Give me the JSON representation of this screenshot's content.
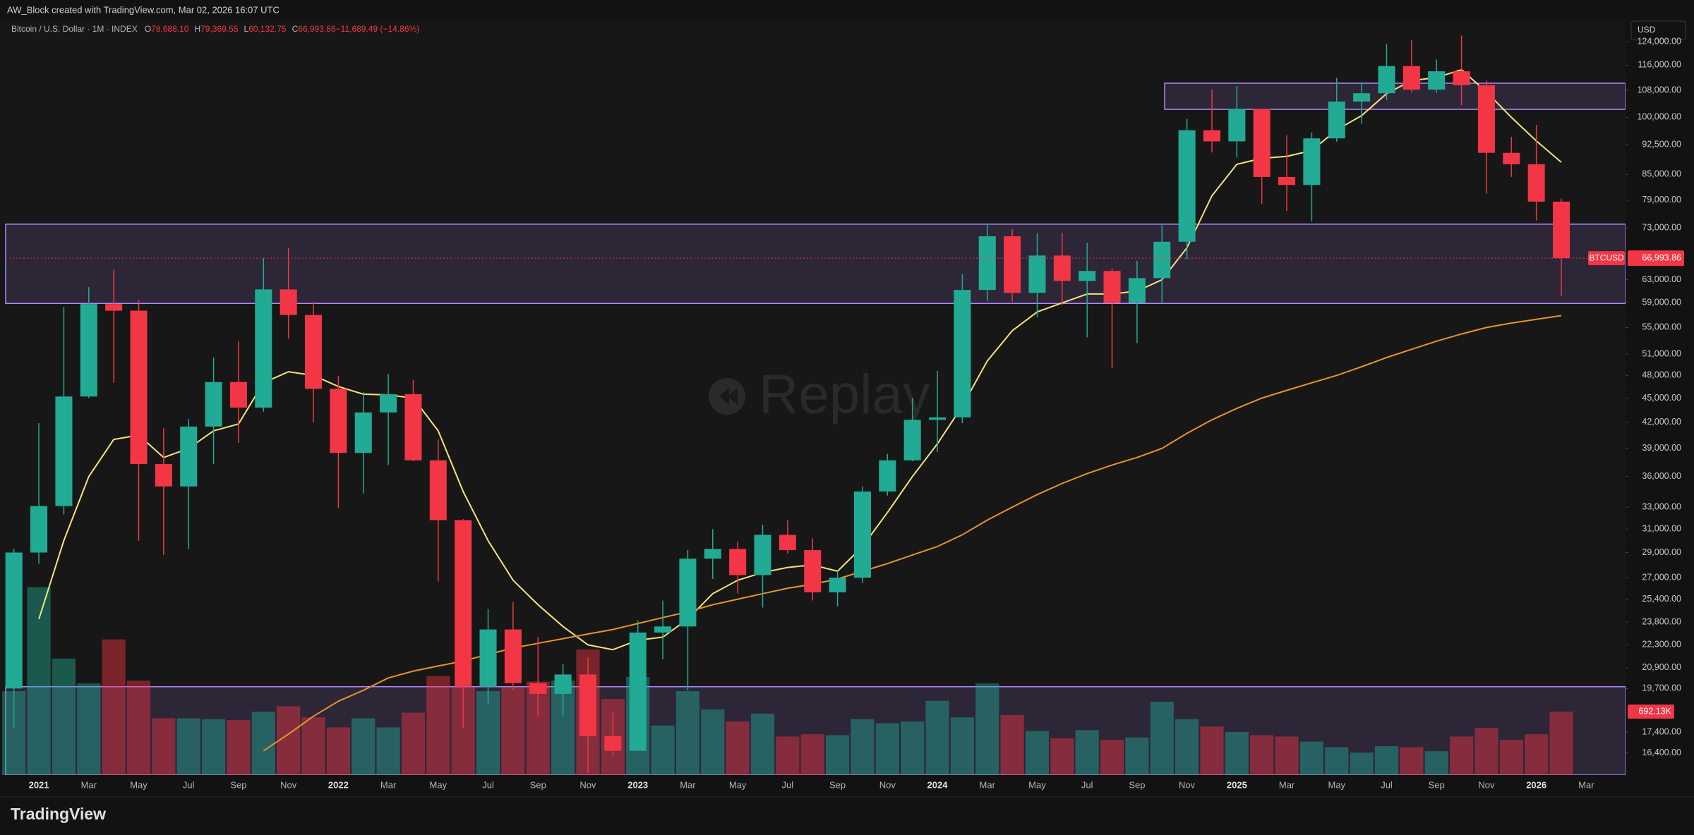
{
  "header": {
    "credit": "AW_Block created with TradingView.com, Mar 02, 2026 16:07 UTC",
    "symbol": "Bitcoin / U.S. Dollar · 1M · INDEX",
    "ohlc": [
      {
        "k": "O",
        "v": "78,688.10"
      },
      {
        "k": "H",
        "v": "79,369.55"
      },
      {
        "k": "L",
        "v": "60,132.75"
      },
      {
        "k": "C",
        "v": "66,993.86"
      },
      {
        "k": "",
        "v": "−11,689.49 (−14.86%)"
      }
    ],
    "currency": "USD",
    "watermark": "Replay",
    "logo": "TradingView"
  },
  "chart_data": {
    "type": "candlestick",
    "log_scale": true,
    "up_color": "#22ab94",
    "down_color": "#f23645",
    "categories": [
      null,
      "2021",
      null,
      "Mar",
      null,
      "May",
      null,
      "Jul",
      null,
      "Sep",
      null,
      "Nov",
      null,
      "2022",
      null,
      "Mar",
      null,
      "May",
      null,
      "Jul",
      null,
      "Sep",
      null,
      "Nov",
      null,
      "2023",
      null,
      "Mar",
      null,
      "May",
      null,
      "Jul",
      null,
      "Sep",
      null,
      "Nov",
      null,
      "2024",
      null,
      "Mar",
      null,
      "May",
      null,
      "Jul",
      null,
      "Sep",
      null,
      "Nov",
      null,
      "2025",
      null,
      "Mar",
      null,
      "May",
      null,
      "Jul",
      null,
      "Sep",
      null,
      "Nov",
      null,
      "2026",
      null,
      "Mar"
    ],
    "open": [
      19700,
      29000,
      33100,
      45200,
      58800,
      57700,
      37300,
      35000,
      41500,
      47100,
      43800,
      61300,
      57000,
      46200,
      38500,
      43200,
      45500,
      37700,
      31800,
      19800,
      23300,
      20000,
      19400,
      20500,
      17200,
      16500,
      23100,
      23500,
      28500,
      29300,
      27200,
      30500,
      29200,
      25900,
      27000,
      34500,
      37700,
      42300,
      42600,
      61200,
      71300,
      60700,
      67500,
      62800,
      64600,
      59000,
      63300,
      70200,
      96400,
      93400,
      102400,
      84400,
      82500,
      94200,
      104600,
      107100,
      115700,
      108200,
      114000,
      109600,
      90400,
      87500,
      78688.1,
      null
    ],
    "high": [
      29300,
      41900,
      58300,
      61700,
      64800,
      59500,
      41300,
      42400,
      50500,
      52900,
      67000,
      69000,
      59100,
      47900,
      45800,
      48200,
      47400,
      40000,
      31900,
      24700,
      25200,
      22800,
      21100,
      21500,
      18400,
      23900,
      25300,
      29200,
      31000,
      29900,
      31400,
      31800,
      30200,
      27500,
      35000,
      38400,
      45000,
      48600,
      64000,
      73800,
      72800,
      71900,
      72000,
      70000,
      65100,
      66500,
      73600,
      99600,
      108300,
      109300,
      102500,
      95000,
      95800,
      111900,
      110500,
      123200,
      124500,
      117900,
      126200,
      111000,
      94600,
      97900,
      79369.55,
      null
    ],
    "low": [
      17600,
      28100,
      32300,
      45000,
      47000,
      30000,
      28800,
      29300,
      37300,
      39600,
      43300,
      53300,
      42000,
      32900,
      34300,
      37200,
      37600,
      26700,
      17600,
      18800,
      19600,
      18200,
      18200,
      15500,
      16300,
      16500,
      21400,
      19600,
      26900,
      25800,
      24800,
      28900,
      25300,
      24900,
      26600,
      34100,
      37600,
      38600,
      41900,
      59300,
      59200,
      56600,
      58600,
      53500,
      49000,
      52600,
      58900,
      66800,
      90500,
      89200,
      78200,
      76600,
      74400,
      93300,
      98200,
      105100,
      107300,
      107300,
      103500,
      80500,
      84400,
      74600,
      60132.75,
      null
    ],
    "close": [
      29000,
      33100,
      45200,
      58800,
      57700,
      37300,
      35000,
      41500,
      47100,
      43800,
      61300,
      57000,
      46200,
      38500,
      43200,
      45500,
      37700,
      31800,
      19800,
      23300,
      20000,
      19400,
      20500,
      17200,
      16500,
      23100,
      23500,
      28500,
      29300,
      27200,
      30500,
      29200,
      25900,
      27000,
      34500,
      37700,
      42300,
      42600,
      61200,
      71300,
      60700,
      67500,
      62800,
      64600,
      59000,
      63300,
      70200,
      96400,
      93400,
      102400,
      84400,
      82500,
      94200,
      104600,
      107100,
      115700,
      108200,
      114000,
      109600,
      90400,
      87500,
      78688.1,
      66993.86,
      null
    ],
    "last_price": {
      "symbol": "BTCUSD",
      "label": "66,993.86"
    },
    "volume": {
      "up_color": "rgba(34,171,148,0.45)",
      "down_color": "rgba(242,54,69,0.45)",
      "last_label": "692.13K",
      "values": [
        915000,
        2050000,
        1270000,
        1000000,
        1480000,
        1030000,
        620000,
        620000,
        610000,
        600000,
        690000,
        750000,
        630000,
        520000,
        620000,
        520000,
        680000,
        1080000,
        960000,
        915000,
        960000,
        1020000,
        1030000,
        1370000,
        830000,
        1070000,
        540000,
        915000,
        715000,
        585000,
        670000,
        420000,
        445000,
        435000,
        610000,
        565000,
        585000,
        810000,
        630000,
        1000000,
        655000,
        480000,
        400000,
        490000,
        385000,
        410000,
        800000,
        610000,
        530000,
        470000,
        435000,
        420000,
        365000,
        305000,
        245000,
        315000,
        305000,
        260000,
        420000,
        515000,
        385000,
        445000,
        692130,
        null
      ]
    },
    "lines": [
      {
        "color": "#f5e37a",
        "values": [
          null,
          24000,
          30000,
          36000,
          40000,
          40500,
          38000,
          39000,
          41000,
          41800,
          47000,
          48500,
          48000,
          46500,
          45500,
          45400,
          45000,
          41000,
          34500,
          30000,
          26800,
          25000,
          23500,
          22300,
          22000,
          22600,
          22800,
          24000,
          25800,
          26800,
          27400,
          27800,
          28000,
          27500,
          29500,
          32500,
          36000,
          39500,
          44000,
          50000,
          54500,
          57500,
          59000,
          60500,
          60500,
          61000,
          63000,
          69000,
          80000,
          87500,
          89000,
          89500,
          91000,
          96500,
          100500,
          107000,
          111000,
          112000,
          114500,
          107500,
          100000,
          93500,
          88000,
          null
        ]
      },
      {
        "color": "#e8922e",
        "values": [
          null,
          null,
          null,
          null,
          null,
          null,
          null,
          null,
          null,
          null,
          16500,
          17300,
          18200,
          19000,
          19600,
          20300,
          20700,
          21000,
          21300,
          21700,
          22100,
          22400,
          22700,
          23000,
          23300,
          23700,
          24100,
          24500,
          25000,
          25400,
          25800,
          26200,
          26500,
          26900,
          27500,
          28100,
          28800,
          29500,
          30500,
          31800,
          33000,
          34200,
          35300,
          36300,
          37200,
          38000,
          39000,
          40700,
          42300,
          43700,
          45000,
          46000,
          47000,
          48000,
          49200,
          50500,
          51700,
          52900,
          54000,
          55000,
          55700,
          56300,
          56900,
          null
        ]
      }
    ],
    "zones": [
      {
        "low": 58900,
        "high": 73800
      },
      {
        "low": 102300,
        "high": 110200
      },
      {
        "low": 15400,
        "high": 19800
      }
    ],
    "zone_color": "#b388ff",
    "ylim": [
      15400,
      132000
    ],
    "yticks": [
      {
        "value": 124000,
        "label": "124,000.00"
      },
      {
        "value": 116000,
        "label": "116,000.00"
      },
      {
        "value": 108000,
        "label": "108,000.00"
      },
      {
        "value": 100000,
        "label": "100,000.00"
      },
      {
        "value": 92500,
        "label": "92,500.00"
      },
      {
        "value": 85000,
        "label": "85,000.00"
      },
      {
        "value": 79000,
        "label": "79,000.00"
      },
      {
        "value": 73000,
        "label": "73,000.00"
      },
      {
        "value": 63000,
        "label": "63,000.00"
      },
      {
        "value": 59000,
        "label": "59,000.00"
      },
      {
        "value": 55000,
        "label": "55,000.00"
      },
      {
        "value": 51000,
        "label": "51,000.00"
      },
      {
        "value": 48000,
        "label": "48,000.00"
      },
      {
        "value": 45000,
        "label": "45,000.00"
      },
      {
        "value": 42000,
        "label": "42,000.00"
      },
      {
        "value": 39000,
        "label": "39,000.00"
      },
      {
        "value": 36000,
        "label": "36,000.00"
      },
      {
        "value": 33000,
        "label": "33,000.00"
      },
      {
        "value": 31000,
        "label": "31,000.00"
      },
      {
        "value": 29000,
        "label": "29,000.00"
      },
      {
        "value": 27000,
        "label": "27,000.00"
      },
      {
        "value": 25400,
        "label": "25,400.00"
      },
      {
        "value": 23800,
        "label": "23,800.00"
      },
      {
        "value": 22300,
        "label": "22,300.00"
      },
      {
        "value": 20900,
        "label": "20,900.00"
      },
      {
        "value": 19700,
        "label": "19,700.00"
      },
      {
        "value": 17400,
        "label": "17,400.00"
      },
      {
        "value": 16400,
        "label": "16,400.00"
      }
    ]
  }
}
